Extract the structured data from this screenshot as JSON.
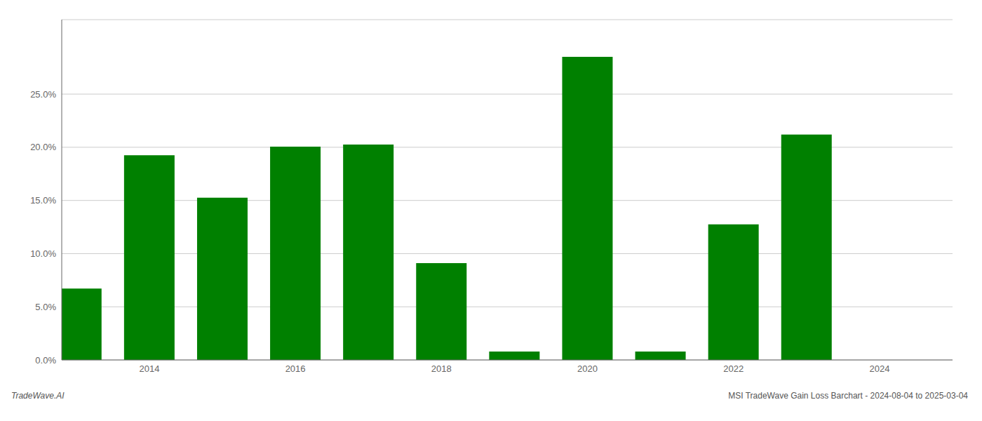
{
  "chart_data": {
    "type": "bar",
    "x": [
      2013,
      2014,
      2015,
      2016,
      2017,
      2018,
      2019,
      2020,
      2021,
      2022,
      2023
    ],
    "values": [
      0.0672,
      0.1925,
      0.1525,
      0.2005,
      0.2025,
      0.091,
      0.008,
      0.285,
      0.008,
      0.1275,
      0.212
    ],
    "color": "#008000",
    "xlim": [
      2012.8,
      2025.0
    ],
    "xticks": [
      2014,
      2016,
      2018,
      2020,
      2022,
      2024
    ],
    "ylim": [
      0,
      0.32
    ],
    "yticks": [
      {
        "value": 0.0,
        "label": "0.0%"
      },
      {
        "value": 0.05,
        "label": "5.0%"
      },
      {
        "value": 0.1,
        "label": "10.0%"
      },
      {
        "value": 0.15,
        "label": "15.0%"
      },
      {
        "value": 0.2,
        "label": "20.0%"
      },
      {
        "value": 0.25,
        "label": "25.0%"
      }
    ],
    "grid": true,
    "annotations": [
      "TradeWave.AI",
      "MSI TradeWave Gain Loss Barchart - 2024-08-04 to 2025-03-04"
    ]
  }
}
